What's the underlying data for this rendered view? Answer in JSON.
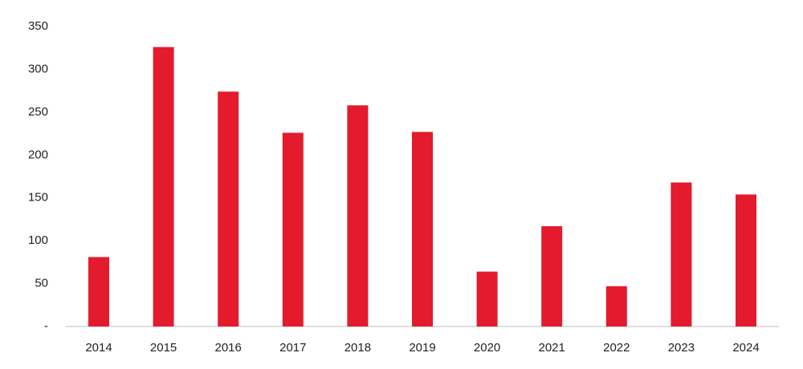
{
  "chart_data": {
    "type": "bar",
    "categories": [
      "2014",
      "2015",
      "2016",
      "2017",
      "2018",
      "2019",
      "2020",
      "2021",
      "2022",
      "2023",
      "2024"
    ],
    "values": [
      81,
      326,
      274,
      226,
      258,
      227,
      64,
      117,
      47,
      168,
      154
    ],
    "color": "#e31b2d",
    "ylim": [
      0,
      350
    ],
    "yticks": [
      {
        "value": 0,
        "label": "-"
      },
      50,
      100,
      150,
      200,
      250,
      300,
      350
    ],
    "grid": false
  }
}
